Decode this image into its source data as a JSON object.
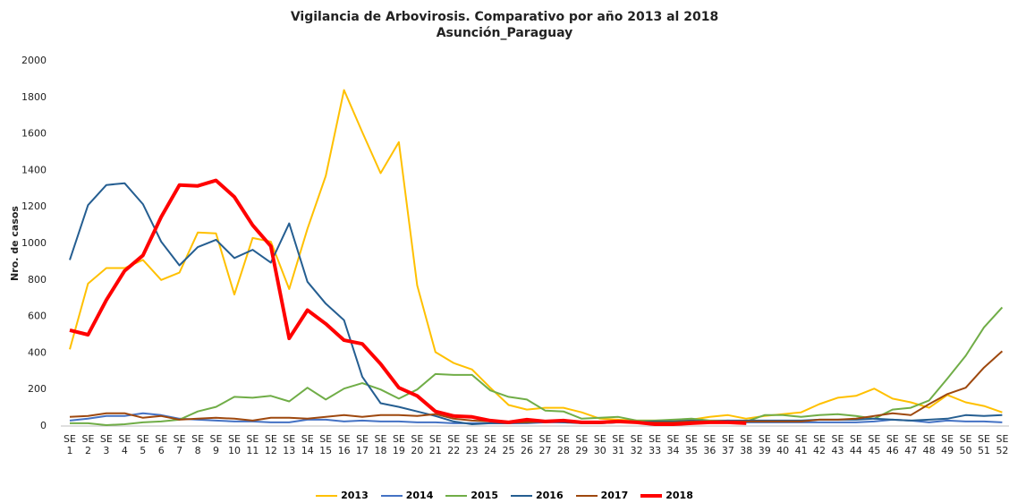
{
  "chart_data": {
    "type": "line",
    "title": "Vigilancia de Arbovirosis. Comparativo por año 2013 al 2018",
    "subtitle": "Asunción_Paraguay",
    "y_label": "Nro. de casos",
    "categories": [
      "SE 1",
      "SE 2",
      "SE 3",
      "SE 4",
      "SE 5",
      "SE 6",
      "SE 7",
      "SE 8",
      "SE 9",
      "SE 10",
      "SE 11",
      "SE 12",
      "SE 13",
      "SE 14",
      "SE 15",
      "SE 16",
      "SE 17",
      "SE 18",
      "SE 19",
      "SE 20",
      "SE 21",
      "SE 22",
      "SE 23",
      "SE 24",
      "SE 25",
      "SE 26",
      "SE 27",
      "SE 28",
      "SE 29",
      "SE 30",
      "SE 31",
      "SE 32",
      "SE 33",
      "SE 34",
      "SE 35",
      "SE 36",
      "SE 37",
      "SE 38",
      "SE 39",
      "SE 40",
      "SE 41",
      "SE 42",
      "SE 43",
      "SE 44",
      "SE 45",
      "SE 46",
      "SE 47",
      "SE 48",
      "SE 49",
      "SE 50",
      "SE 51",
      "SE 52"
    ],
    "ylim": [
      0,
      2000
    ],
    "yticks": [
      0,
      200,
      400,
      600,
      800,
      1000,
      1200,
      1400,
      1600,
      1800,
      2000
    ],
    "grid": false,
    "legend": "bottom",
    "series": [
      {
        "name": "2013",
        "color": "#FFC000",
        "line_width": 2,
        "values": [
          420,
          780,
          865,
          865,
          910,
          800,
          840,
          1060,
          1055,
          720,
          1030,
          1010,
          750,
          1080,
          1370,
          1840,
          1610,
          1385,
          1555,
          770,
          405,
          345,
          310,
          210,
          115,
          90,
          100,
          100,
          75,
          40,
          35,
          30,
          30,
          30,
          35,
          50,
          60,
          40,
          55,
          65,
          75,
          120,
          155,
          165,
          205,
          150,
          130,
          100,
          170,
          130,
          110,
          75
        ]
      },
      {
        "name": "2014",
        "color": "#4472C4",
        "line_width": 2,
        "values": [
          30,
          40,
          55,
          55,
          70,
          60,
          40,
          35,
          30,
          25,
          25,
          20,
          20,
          35,
          35,
          25,
          30,
          25,
          25,
          20,
          20,
          15,
          15,
          15,
          15,
          15,
          20,
          20,
          20,
          15,
          20,
          20,
          20,
          20,
          20,
          25,
          20,
          20,
          20,
          20,
          20,
          20,
          20,
          20,
          25,
          35,
          30,
          20,
          30,
          25,
          25,
          20
        ]
      },
      {
        "name": "2015",
        "color": "#70AD47",
        "line_width": 2,
        "values": [
          15,
          15,
          5,
          10,
          20,
          25,
          35,
          80,
          105,
          160,
          155,
          165,
          135,
          210,
          145,
          205,
          235,
          200,
          150,
          200,
          285,
          280,
          280,
          195,
          160,
          145,
          85,
          80,
          40,
          45,
          50,
          30,
          30,
          35,
          40,
          30,
          30,
          25,
          60,
          60,
          50,
          60,
          65,
          55,
          40,
          90,
          100,
          140,
          260,
          385,
          540,
          650
        ]
      },
      {
        "name": "2016",
        "color": "#255E91",
        "line_width": 2,
        "values": [
          910,
          1210,
          1320,
          1330,
          1215,
          1010,
          880,
          980,
          1020,
          920,
          965,
          895,
          1110,
          790,
          670,
          580,
          270,
          125,
          105,
          80,
          55,
          25,
          10,
          15,
          15,
          20,
          25,
          20,
          15,
          15,
          20,
          20,
          25,
          25,
          30,
          25,
          30,
          30,
          30,
          30,
          30,
          35,
          35,
          35,
          40,
          35,
          30,
          35,
          40,
          60,
          55,
          60
        ]
      },
      {
        "name": "2017",
        "color": "#9E480E",
        "line_width": 2,
        "values": [
          50,
          55,
          70,
          70,
          45,
          55,
          35,
          40,
          45,
          40,
          30,
          45,
          45,
          40,
          50,
          60,
          50,
          60,
          60,
          55,
          65,
          40,
          30,
          25,
          20,
          20,
          25,
          25,
          20,
          20,
          20,
          20,
          20,
          20,
          25,
          25,
          25,
          25,
          25,
          25,
          25,
          35,
          35,
          40,
          55,
          70,
          60,
          120,
          175,
          210,
          320,
          410
        ]
      },
      {
        "name": "2018",
        "color": "#FF0000",
        "line_width": 4,
        "values": [
          525,
          500,
          690,
          850,
          935,
          1145,
          1320,
          1315,
          1345,
          1255,
          1100,
          985,
          480,
          635,
          560,
          470,
          450,
          340,
          210,
          165,
          80,
          55,
          50,
          30,
          20,
          35,
          25,
          30,
          20,
          20,
          25,
          20,
          10,
          10,
          15,
          20,
          20,
          15,
          null,
          null,
          null,
          null,
          null,
          null,
          null,
          null,
          null,
          null,
          null,
          null,
          null,
          null
        ]
      }
    ]
  }
}
